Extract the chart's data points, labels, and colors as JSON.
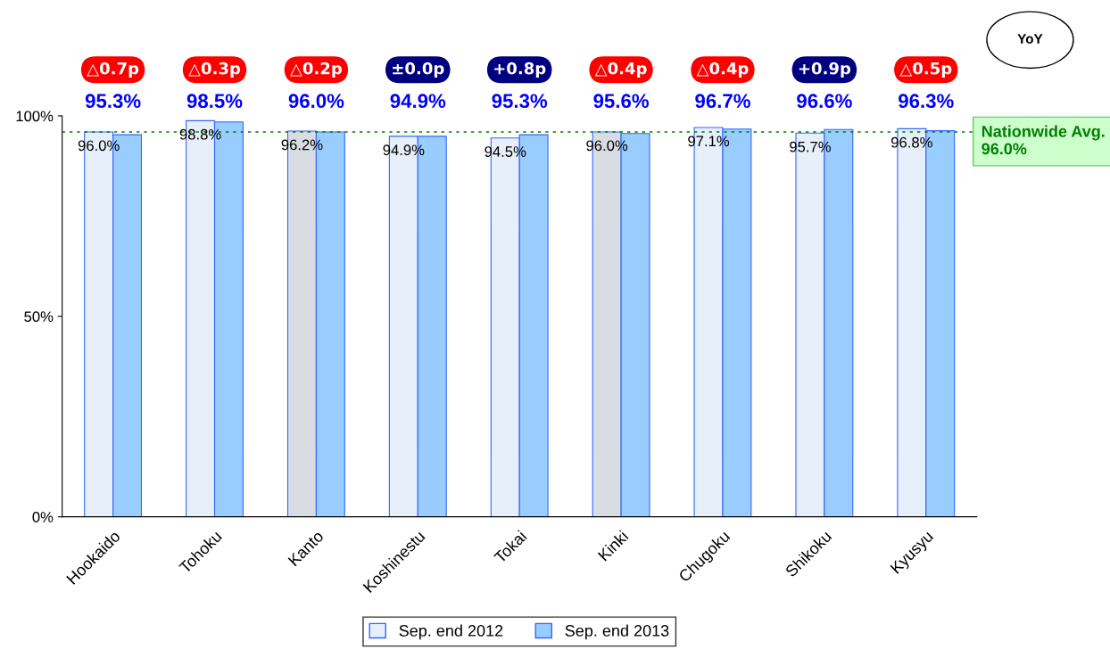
{
  "chart_data": {
    "type": "bar",
    "categories": [
      "Hookaido",
      "Tohoku",
      "Kanto",
      "Koshinestu",
      "Tokai",
      "Kinki",
      "Chugoku",
      "Shikoku",
      "Kyusyu"
    ],
    "series": [
      {
        "name": "Sep. end 2012",
        "color": "#e6effa",
        "colors": [
          "#e6effa",
          "#e6effa",
          "#d9dde3",
          "#e6effa",
          "#e6effa",
          "#d9dde3",
          "#e6effa",
          "#e6effa",
          "#e6effa"
        ],
        "values": [
          96.0,
          98.8,
          96.2,
          94.9,
          94.5,
          96.0,
          97.1,
          95.7,
          96.8
        ],
        "value_labels": [
          "96.0%",
          "98.8%",
          "96.2%",
          "94.9%",
          "94.5%",
          "96.0%",
          "97.1%",
          "95.7%",
          "96.8%"
        ]
      },
      {
        "name": "Sep. end 2013",
        "color": "#99ccff",
        "values": [
          95.3,
          98.5,
          96.0,
          94.9,
          95.3,
          95.6,
          96.7,
          96.6,
          96.3
        ],
        "value_labels": [
          "95.3%",
          "98.5%",
          "96.0%",
          "94.9%",
          "95.3%",
          "95.6%",
          "96.7%",
          "96.6%",
          "96.3%"
        ]
      }
    ],
    "ylim": [
      0,
      100
    ],
    "yticks": [
      {
        "value": 0,
        "label": "0%"
      },
      {
        "value": 50,
        "label": "50%"
      },
      {
        "value": 100,
        "label": "100%"
      }
    ],
    "grid": false,
    "legend": "bottom",
    "ref_lines": [
      {
        "axis": "y",
        "value": 96.0,
        "label": "Nationwide Avg. 96.0%",
        "color": "#008000",
        "line_style": "dotted"
      }
    ],
    "annotations": [
      "YoY",
      "△0.7p",
      "△0.3p",
      "△0.2p",
      "±0.0p",
      "+0.8p",
      "△0.4p",
      "△0.4p",
      "+0.9p",
      "△0.5p"
    ]
  }
}
